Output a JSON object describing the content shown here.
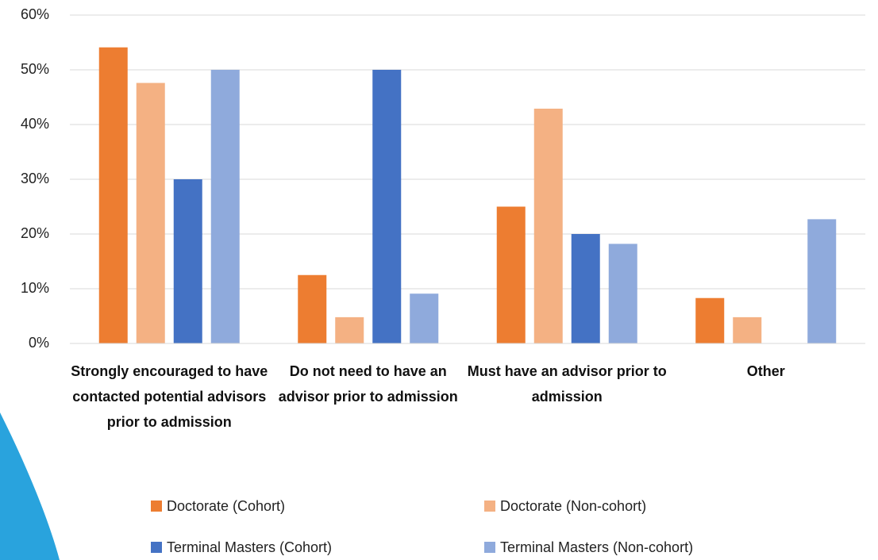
{
  "chart_data": {
    "type": "bar",
    "categories": [
      "Strongly encouraged to have contacted potential advisors prior to admission",
      "Do not need to have an advisor prior to admission",
      "Must have an advisor prior to admission",
      "Other"
    ],
    "series": [
      {
        "name": "Doctorate (Cohort)",
        "color": "#ed7d31",
        "values": [
          54.1,
          12.5,
          25,
          8.3
        ]
      },
      {
        "name": "Doctorate (Non-cohort)",
        "color": "#f4b183",
        "values": [
          47.6,
          4.8,
          42.9,
          4.8
        ]
      },
      {
        "name": "Terminal Masters (Cohort)",
        "color": "#4472c4",
        "values": [
          30,
          50,
          20,
          0
        ]
      },
      {
        "name": "Terminal Masters (Non-cohort)",
        "color": "#8faadc",
        "values": [
          50,
          9.1,
          18.2,
          22.7
        ]
      }
    ],
    "ylim": [
      0,
      60
    ],
    "yticks": [
      {
        "value": 0,
        "label": "0%"
      },
      {
        "value": 10,
        "label": "10%"
      },
      {
        "value": 20,
        "label": "20%"
      },
      {
        "value": 30,
        "label": "30%"
      },
      {
        "value": 40,
        "label": "40%"
      },
      {
        "value": 50,
        "label": "50%"
      },
      {
        "value": 60,
        "label": "60%"
      }
    ],
    "grid": true,
    "legend": "bottom"
  }
}
